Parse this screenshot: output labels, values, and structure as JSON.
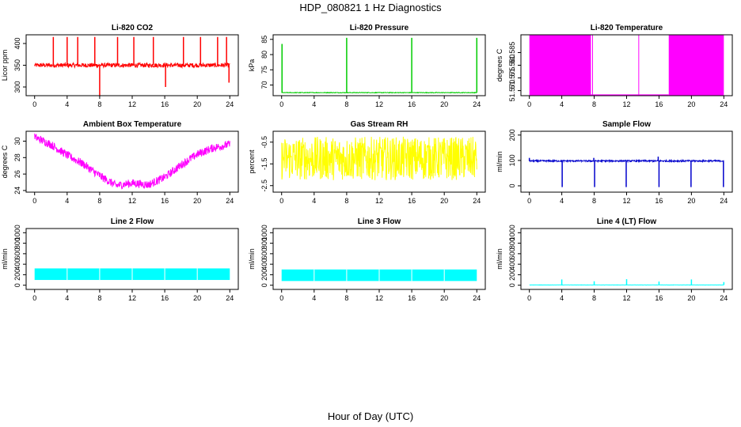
{
  "figure": {
    "title": "HDP_080821  1 Hz Diagnostics",
    "xlabel": "Hour of Day (UTC)"
  },
  "chart_data": [
    {
      "type": "line",
      "title": "Li-820 CO2",
      "ylabel": "Licor ppm",
      "color": "#ff0000",
      "xlim": [
        0,
        24
      ],
      "xticks": [
        0,
        4,
        8,
        12,
        16,
        20,
        24
      ],
      "yticks": [
        300,
        350,
        400
      ],
      "ylim": [
        280,
        420
      ],
      "series": [
        {
          "name": "Li-820 CO2",
          "baseline": 350,
          "noise": 5,
          "spikes": [
            [
              2.3,
              415
            ],
            [
              4.0,
              415
            ],
            [
              5.3,
              415
            ],
            [
              7.4,
              415
            ],
            [
              8.0,
              270
            ],
            [
              10.2,
              415
            ],
            [
              12.2,
              415
            ],
            [
              14.6,
              415
            ],
            [
              16.1,
              300
            ],
            [
              18.3,
              415
            ],
            [
              20.4,
              415
            ],
            [
              22.5,
              415
            ],
            [
              23.6,
              415
            ],
            [
              23.9,
              310
            ]
          ]
        }
      ]
    },
    {
      "type": "line",
      "title": "Li-820 Pressure",
      "ylabel": "kPa",
      "color": "#00cc00",
      "xlim": [
        0,
        24
      ],
      "xticks": [
        0,
        4,
        8,
        12,
        16,
        20,
        24
      ],
      "yticks": [
        70,
        75,
        80,
        85
      ],
      "ylim": [
        66.5,
        86.5
      ],
      "series": [
        {
          "name": "Li-820 Pressure",
          "baseline": 67.5,
          "noise": 0.1,
          "spikes": [
            [
              0.05,
              83.5
            ],
            [
              8.0,
              85.5
            ],
            [
              16.0,
              85.5
            ],
            [
              24.0,
              85.5
            ]
          ]
        }
      ]
    },
    {
      "type": "area",
      "title": "Li-820 Temperature",
      "ylabel": "degrees C",
      "color": "#ff00ff",
      "xlim": [
        0,
        24
      ],
      "xticks": [
        0,
        4,
        8,
        12,
        16,
        20,
        24
      ],
      "yticks": [
        51.57,
        51.575,
        51.58,
        51.585
      ],
      "ytick_labels": [
        "51.570",
        "51.575",
        "51.580",
        "51.585"
      ],
      "ylim": [
        51.568,
        51.592
      ],
      "series": [
        {
          "name": "Li-820 Temperature",
          "band": [
            51.568,
            51.592
          ],
          "filled_ranges": [
            [
              0,
              7.6
            ],
            [
              17.2,
              24
            ]
          ],
          "spikes": [
            [
              7.8
            ],
            [
              13.5
            ]
          ]
        }
      ]
    },
    {
      "type": "line",
      "title": "Ambient Box Temperature",
      "ylabel": "degrees C",
      "color": "#ff00ff",
      "xlim": [
        0,
        24
      ],
      "xticks": [
        0,
        4,
        8,
        12,
        16,
        20,
        24
      ],
      "yticks": [
        24,
        26,
        28,
        30
      ],
      "ylim": [
        23.8,
        31.2
      ],
      "series": [
        {
          "name": "Ambient Box Temperature",
          "noise": 0.5,
          "x": [
            0,
            2,
            4,
            6,
            8,
            10,
            12,
            14,
            16,
            18,
            20,
            22,
            24
          ],
          "y": [
            30.5,
            29.6,
            28.3,
            27.2,
            25.8,
            24.6,
            24.9,
            24.7,
            25.6,
            27.1,
            28.4,
            29.2,
            29.6
          ]
        }
      ]
    },
    {
      "type": "line",
      "title": "Gas Stream RH",
      "ylabel": "percent",
      "color": "#ffff00",
      "xlim": [
        0,
        24
      ],
      "xticks": [
        0,
        4,
        8,
        12,
        16,
        20,
        24
      ],
      "yticks": [
        -2.5,
        -1.5,
        -0.5
      ],
      "ylim": [
        -2.8,
        0.0
      ],
      "series": [
        {
          "name": "Gas Stream RH",
          "baseline": -1.25,
          "noise": 1.0
        }
      ]
    },
    {
      "type": "line",
      "title": "Sample Flow",
      "ylabel": "ml/min",
      "color": "#0000cc",
      "xlim": [
        0,
        24
      ],
      "xticks": [
        0,
        4,
        8,
        12,
        16,
        20,
        24
      ],
      "yticks": [
        0,
        100,
        200
      ],
      "ylim": [
        -25,
        215
      ],
      "series": [
        {
          "name": "Sample Flow",
          "baseline": 98,
          "noise": 3,
          "spikes": [
            [
              0,
              110
            ],
            [
              4.05,
              -5
            ],
            [
              7.95,
              110
            ],
            [
              8.05,
              -5
            ],
            [
              11.95,
              -5
            ],
            [
              15.9,
              115
            ],
            [
              16.0,
              -5
            ],
            [
              19.95,
              -5
            ],
            [
              23.95,
              -5
            ]
          ]
        }
      ]
    },
    {
      "type": "area",
      "title": "Line 2 Flow",
      "ylabel": "ml/min",
      "color": "#00ffff",
      "xlim": [
        0,
        24
      ],
      "xticks": [
        0,
        4,
        8,
        12,
        16,
        20,
        24
      ],
      "yticks": [
        0,
        200,
        400,
        600,
        800,
        1000
      ],
      "ylim": [
        -80,
        1080
      ],
      "series": [
        {
          "name": "Line 2 Flow",
          "band": [
            100,
            320
          ],
          "gaps": [
            4,
            8,
            12,
            16,
            20
          ]
        }
      ]
    },
    {
      "type": "area",
      "title": "Line 3 Flow",
      "ylabel": "ml/min",
      "color": "#00ffff",
      "xlim": [
        0,
        24
      ],
      "xticks": [
        0,
        4,
        8,
        12,
        16,
        20,
        24
      ],
      "yticks": [
        0,
        200,
        400,
        600,
        800,
        1000
      ],
      "ylim": [
        -80,
        1080
      ],
      "series": [
        {
          "name": "Line 3 Flow",
          "band": [
            80,
            300
          ],
          "gaps": [
            4,
            8,
            12,
            16,
            20
          ]
        }
      ]
    },
    {
      "type": "line",
      "title": "Line 4 (LT) Flow",
      "ylabel": "ml/min",
      "color": "#00ffff",
      "xlim": [
        0,
        24
      ],
      "xticks": [
        0,
        4,
        8,
        12,
        16,
        20,
        24
      ],
      "yticks": [
        0,
        200,
        400,
        600,
        800,
        1000
      ],
      "ylim": [
        -80,
        1080
      ],
      "series": [
        {
          "name": "Line 4 (LT) Flow",
          "baseline": 5,
          "noise": 2,
          "spikes": [
            [
              4.0,
              110
            ],
            [
              8.0,
              75
            ],
            [
              12.0,
              115
            ],
            [
              16.0,
              70
            ],
            [
              20.0,
              110
            ],
            [
              24.0,
              60
            ]
          ]
        }
      ]
    }
  ]
}
